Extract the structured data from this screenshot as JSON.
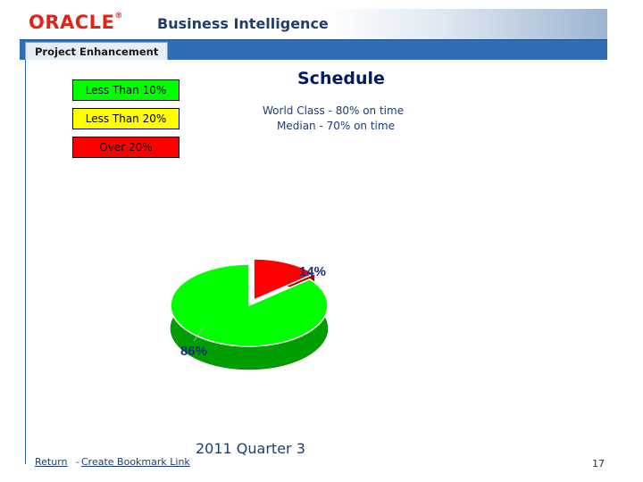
{
  "header": {
    "logo_text": "ORACLE",
    "logo_mark": "®",
    "title": "Business Intelligence"
  },
  "dashboard": {
    "tab_label": "Project Enhancement"
  },
  "legend": [
    {
      "label": "Less Than 10%",
      "color": "#00ff00"
    },
    {
      "label": "Less Than 20%",
      "color": "#ffff00"
    },
    {
      "label": "Over 20%",
      "color": "#ff0000"
    }
  ],
  "report": {
    "title": "Schedule",
    "subtitle_lines": [
      "World Class - 80% on time",
      "Median - 70% on time"
    ],
    "period_label": "2011 Quarter 3"
  },
  "chart_data": {
    "type": "pie",
    "slices": [
      {
        "label": "14%",
        "value": 14,
        "color": "#ff0000"
      },
      {
        "label": "86%",
        "value": 86,
        "color": "#00ff00"
      }
    ],
    "title": "",
    "legend": "none"
  },
  "footer": {
    "links": [
      "Return",
      "Create Bookmark Link"
    ],
    "separator": "-"
  },
  "slide": {
    "page_number": "17"
  }
}
